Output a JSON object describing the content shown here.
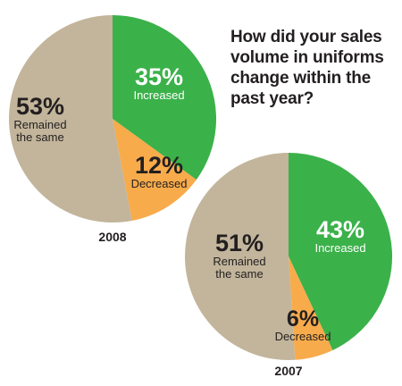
{
  "question": "How did your sales volume in uniforms change within the past year?",
  "colors": {
    "increased": "#3bb14a",
    "decreased": "#f8ab4b",
    "remained": "#c2b59b",
    "text_dark": "#231f20",
    "text_light": "#ffffff"
  },
  "chart_data": [
    {
      "type": "pie",
      "label": "2008",
      "slices": [
        {
          "pct_label": "35%",
          "name": "Increased",
          "value": 35,
          "color": "#3bb14a"
        },
        {
          "pct_label": "12%",
          "name": "Decreased",
          "value": 12,
          "color": "#f8ab4b"
        },
        {
          "pct_label": "53%",
          "name": "Remained the same",
          "value": 53,
          "color": "#c2b59b"
        }
      ]
    },
    {
      "type": "pie",
      "label": "2007",
      "slices": [
        {
          "pct_label": "43%",
          "name": "Increased",
          "value": 43,
          "color": "#3bb14a"
        },
        {
          "pct_label": "6%",
          "name": "Decreased",
          "value": 6,
          "color": "#f8ab4b"
        },
        {
          "pct_label": "51%",
          "name": "Remained the same",
          "value": 51,
          "color": "#c2b59b"
        }
      ]
    }
  ]
}
